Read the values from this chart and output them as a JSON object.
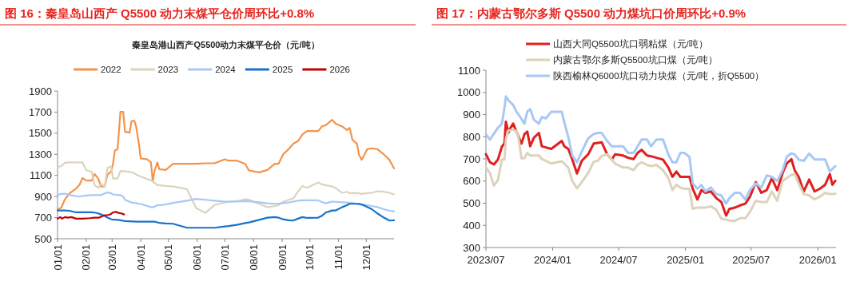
{
  "chart_data": [
    {
      "type": "line",
      "title": "图 16：秦皇岛山西产 Q5500 动力末煤平仓价周环比+0.8%",
      "subtitle": "秦皇岛港山西产Q5500动力末煤平仓价（元/吨）",
      "x": [
        "--01-01",
        "--01-05",
        "--01-09",
        "--01-14",
        "--01-21",
        "--01-25",
        "--01-28",
        "--02-01",
        "--02-07",
        "--02-10",
        "--02-14",
        "--02-17",
        "--02-21",
        "--02-24",
        "--02-28",
        "--03-02",
        "--03-04",
        "--03-07",
        "--03-10",
        "--03-13",
        "--03-15",
        "--03-20",
        "--03-22",
        "--03-25",
        "--03-27",
        "--03-30",
        "--04-01",
        "--04-08",
        "--04-12",
        "--04-14",
        "--04-16",
        "--04-19",
        "--04-21",
        "--04-28",
        "--05-06",
        "--05-21",
        "--05-31",
        "--06-10",
        "--06-20",
        "--07-01",
        "--07-05",
        "--07-14",
        "--07-23",
        "--07-27",
        "--08-07",
        "--08-16",
        "--08-24",
        "--08-28",
        "--09-02",
        "--09-08",
        "--09-13",
        "--09-18",
        "--09-23",
        "--09-28",
        "--10-10",
        "--10-14",
        "--10-18",
        "--10-25",
        "--10-29",
        "--11-05",
        "--11-10",
        "--11-13",
        "--11-16",
        "--11-21",
        "--11-23",
        "--11-26",
        "--12-02",
        "--12-07",
        "--12-13",
        "--12-20",
        "--12-26",
        "--12-31"
      ],
      "series": [
        {
          "name": "2022",
          "color": "#f4934a",
          "values": [
            778,
            793,
            874,
            930,
            975,
            1015,
            1076,
            1051,
            1051,
            1114,
            1071,
            995,
            995,
            1109,
            1134,
            1210,
            1336,
            1349,
            1703,
            1703,
            1513,
            1506,
            1614,
            1620,
            1564,
            1400,
            1261,
            1253,
            1223,
            1046,
            1147,
            1223,
            1160,
            1152,
            1210,
            1210,
            1210,
            1215,
            1215,
            1253,
            1240,
            1240,
            1210,
            1147,
            1129,
            1152,
            1210,
            1210,
            1299,
            1349,
            1400,
            1425,
            1488,
            1521,
            1521,
            1564,
            1576,
            1627,
            1589,
            1564,
            1531,
            1551,
            1437,
            1400,
            1299,
            1248,
            1349,
            1357,
            1349,
            1299,
            1248,
            1167
          ]
        },
        {
          "name": "2023",
          "color": "#ddd3bc",
          "values": [
            1175,
            1190,
            1220,
            1223,
            1223,
            1223,
            1223,
            1150,
            1134,
            1008,
            983,
            1020,
            995,
            1172,
            1185,
            1071,
            1071,
            1071,
            1142,
            1140,
            1138,
            1134,
            1130,
            1120,
            1110,
            1096,
            1090,
            1065,
            1055,
            1040,
            1030,
            1008,
            1008,
            1000,
            995,
            970,
            790,
            745,
            820,
            844,
            850,
            856,
            875,
            870,
            831,
            800,
            810,
            818,
            850,
            869,
            882,
            945,
            1000,
            983,
            1033,
            1015,
            1008,
            995,
            980,
            935,
            945,
            932,
            932,
            932,
            930,
            925,
            932,
            935,
            950,
            945,
            935,
            920
          ]
        },
        {
          "name": "2024",
          "color": "#a8c8f5",
          "values": [
            914,
            925,
            927,
            914,
            905,
            899,
            905,
            910,
            914,
            914,
            914,
            914,
            930,
            940,
            930,
            920,
            918,
            916,
            914,
            900,
            869,
            850,
            844,
            840,
            838,
            831,
            830,
            810,
            800,
            798,
            805,
            818,
            818,
            825,
            840,
            861,
            878,
            869,
            860,
            851,
            851,
            853,
            856,
            855,
            845,
            836,
            831,
            833,
            838,
            844,
            852,
            860,
            864,
            864,
            864,
            848,
            836,
            851,
            850,
            846,
            844,
            840,
            838,
            831,
            828,
            825,
            818,
            810,
            800,
            780,
            765,
            760
          ]
        },
        {
          "name": "2025",
          "color": "#1873c8",
          "values": [
            768,
            768,
            768,
            765,
            750,
            750,
            750,
            750,
            750,
            748,
            740,
            730,
            715,
            700,
            685,
            680,
            680,
            679,
            675,
            670,
            667,
            665,
            664,
            663,
            662,
            662,
            662,
            662,
            662,
            662,
            662,
            655,
            650,
            645,
            642,
            604,
            604,
            604,
            604,
            616,
            620,
            632,
            648,
            654,
            679,
            700,
            705,
            700,
            684,
            675,
            672,
            690,
            705,
            697,
            700,
            717,
            748,
            768,
            768,
            800,
            818,
            831,
            831,
            831,
            830,
            825,
            800,
            780,
            740,
            700,
            672,
            675
          ]
        },
        {
          "name": "2026",
          "color": "#c00000",
          "x": [
            "--01-01",
            "--01-04",
            "--01-06",
            "--01-09",
            "--01-12",
            "--01-16",
            "--01-21",
            "--01-28",
            "--02-05",
            "--02-10",
            "--02-15",
            "--02-20",
            "--02-25",
            "--02-28",
            "--03-02",
            "--03-05",
            "--03-08",
            "--03-11",
            "--03-14"
          ],
          "values": [
            690,
            705,
            690,
            705,
            700,
            705,
            690,
            690,
            695,
            700,
            700,
            720,
            725,
            735,
            750,
            755,
            745,
            740,
            730
          ]
        }
      ],
      "xlim": [
        "--01-01",
        "--12-31"
      ],
      "xticks": [
        {
          "value": "--01-01",
          "label": "01/01"
        },
        {
          "value": "--02-01",
          "label": "02/01"
        },
        {
          "value": "--03-01",
          "label": "03/01"
        },
        {
          "value": "--04-01",
          "label": "04/01"
        },
        {
          "value": "--05-01",
          "label": "05/01"
        },
        {
          "value": "--06-01",
          "label": "06/01"
        },
        {
          "value": "--07-01",
          "label": "07/01"
        },
        {
          "value": "--08-01",
          "label": "08/01"
        },
        {
          "value": "--09-01",
          "label": "09/01"
        },
        {
          "value": "--10-01",
          "label": "10/01"
        },
        {
          "value": "--11-01",
          "label": "11/01"
        },
        {
          "value": "--12-01",
          "label": "12/01"
        }
      ],
      "ylim": [
        500,
        1900
      ],
      "yticks": [
        500,
        700,
        900,
        1100,
        1300,
        1500,
        1700,
        1900
      ],
      "legend": "top"
    },
    {
      "type": "line",
      "title": "图 17：内蒙古鄂尔多斯 Q5500 动力煤坑口价周环比+0.9%",
      "x": [
        "2023-07-01",
        "2023-07-12",
        "2023-07-23",
        "2023-08-03",
        "2023-08-14",
        "2023-08-21",
        "2023-08-25",
        "2023-09-01",
        "2023-09-05",
        "2023-09-14",
        "2023-09-23",
        "2023-09-29",
        "2023-10-07",
        "2023-10-15",
        "2023-10-23",
        "2023-10-31",
        "2023-11-10",
        "2023-11-24",
        "2023-12-02",
        "2023-12-13",
        "2023-12-28",
        "2024-01-26",
        "2024-02-02",
        "2024-02-13",
        "2024-02-24",
        "2024-03-08",
        "2024-03-21",
        "2024-04-08",
        "2024-04-23",
        "2024-05-04",
        "2024-05-15",
        "2024-05-30",
        "2024-06-12",
        "2024-06-21",
        "2024-07-13",
        "2024-07-27",
        "2024-08-11",
        "2024-08-22",
        "2024-09-02",
        "2024-09-17",
        "2024-09-28",
        "2024-10-13",
        "2024-10-31",
        "2024-11-15",
        "2024-11-26",
        "2024-12-07",
        "2024-12-18",
        "2024-12-29",
        "2025-01-12",
        "2025-01-21",
        "2025-02-03",
        "2025-02-14",
        "2025-02-25",
        "2025-03-12",
        "2025-03-27",
        "2025-04-10",
        "2025-04-23",
        "2025-05-02",
        "2025-05-17",
        "2025-05-31",
        "2025-06-15",
        "2025-06-28",
        "2025-07-14",
        "2025-07-29",
        "2025-08-13",
        "2025-08-27",
        "2025-09-11",
        "2025-09-26",
        "2025-10-07",
        "2025-10-20",
        "2025-10-29",
        "2025-11-09",
        "2025-11-23",
        "2025-12-08",
        "2025-12-23",
        "2026-01-06",
        "2026-01-21",
        "2026-02-03",
        "2026-02-10",
        "2026-02-18"
      ],
      "series": [
        {
          "name": "山西大同Q5500坑口弱粘煤（元/吨）",
          "color": "#e02020",
          "values": [
            721,
            685,
            675,
            697,
            755,
            770,
            868,
            817,
            835,
            859,
            823,
            800,
            769,
            811,
            823,
            757,
            795,
            817,
            757,
            752,
            745,
            781,
            757,
            745,
            697,
            634,
            691,
            721,
            769,
            772,
            775,
            721,
            697,
            721,
            715,
            705,
            699,
            727,
            741,
            715,
            712,
            705,
            697,
            661,
            619,
            643,
            619,
            619,
            619,
            565,
            517,
            559,
            547,
            553,
            523,
            505,
            444,
            474,
            480,
            490,
            498,
            530,
            595,
            547,
            559,
            613,
            559,
            637,
            679,
            699,
            649,
            619,
            553,
            607,
            553,
            565,
            583,
            631,
            583,
            601
          ]
        },
        {
          "name": "内蒙古鄂尔多斯Q5500坑口煤（元/吨）",
          "color": "#ddd3bc",
          "values": [
            663,
            637,
            579,
            605,
            697,
            697,
            790,
            829,
            829,
            832,
            825,
            793,
            703,
            703,
            727,
            715,
            715,
            715,
            700,
            691,
            679,
            689,
            679,
            661,
            601,
            567,
            595,
            637,
            687,
            691,
            713,
            721,
            697,
            679,
            661,
            661,
            649,
            673,
            685,
            673,
            667,
            673,
            649,
            613,
            559,
            583,
            570,
            565,
            565,
            475,
            480,
            480,
            480,
            486,
            470,
            430,
            426,
            422,
            420,
            432,
            432,
            462,
            511,
            505,
            505,
            553,
            511,
            601,
            613,
            628,
            631,
            589,
            541,
            535,
            517,
            529,
            547,
            541,
            541,
            543
          ]
        },
        {
          "name": "陕西榆林Q6000坑口动力块煤（元/吨，折Q5500）",
          "color": "#a8c8f5",
          "values": [
            811,
            787,
            814,
            840,
            859,
            930,
            982,
            965,
            958,
            944,
            913,
            900,
            880,
            859,
            913,
            925,
            877,
            859,
            889,
            883,
            913,
            913,
            865,
            799,
            715,
            685,
            733,
            793,
            812,
            817,
            817,
            781,
            757,
            757,
            757,
            727,
            727,
            757,
            787,
            787,
            757,
            787,
            787,
            720,
            685,
            685,
            727,
            727,
            709,
            589,
            565,
            583,
            553,
            571,
            541,
            535,
            498,
            523,
            547,
            547,
            517,
            560,
            589,
            571,
            625,
            619,
            601,
            649,
            709,
            725,
            720,
            697,
            691,
            724,
            697,
            697,
            697,
            643,
            655,
            667
          ]
        }
      ],
      "xlim": [
        "2023-07-01",
        "2026-02-20"
      ],
      "xticks": [
        {
          "value": "2023-07-01",
          "label": "2023/07"
        },
        {
          "value": "2024-01-01",
          "label": "2024/01"
        },
        {
          "value": "2024-07-01",
          "label": "2024/07"
        },
        {
          "value": "2025-01-01",
          "label": "2025/01"
        },
        {
          "value": "2025-07-01",
          "label": "2025/07"
        },
        {
          "value": "2026-01-01",
          "label": "2026/01"
        }
      ],
      "ylim": [
        300,
        1100
      ],
      "yticks": [
        300,
        400,
        500,
        600,
        700,
        800,
        900,
        1000,
        1100
      ],
      "legend": "top"
    }
  ]
}
